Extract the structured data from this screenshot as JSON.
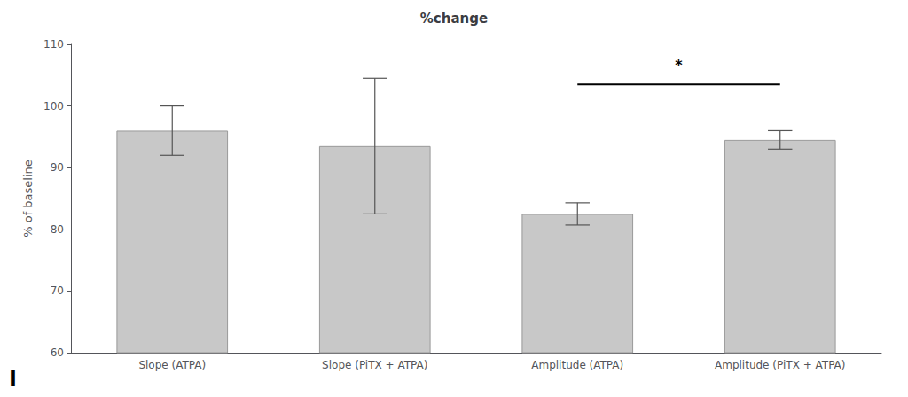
{
  "chart_data": {
    "type": "bar",
    "title": "%change",
    "ylabel": "% of baseline",
    "categories": [
      "Slope (ATPA)",
      "Slope (PiTX + ATPA)",
      "Amplitude (ATPA)",
      "Amplitude (PiTX + ATPA)"
    ],
    "values": [
      96.0,
      93.5,
      82.5,
      94.5
    ],
    "errors": [
      4.0,
      11.0,
      1.8,
      1.5
    ],
    "color": "#c8c8c8",
    "ylim": [
      60,
      110
    ],
    "yticks": [
      60,
      70,
      80,
      90,
      100,
      110
    ],
    "grid": false,
    "significance": [
      {
        "from": "Amplitude (ATPA)",
        "to": "Amplitude (PiTX + ATPA)",
        "y": 103.5,
        "label": "*",
        "label_y": 105.5
      }
    ],
    "annotations": [
      {
        "text": "I"
      }
    ]
  }
}
